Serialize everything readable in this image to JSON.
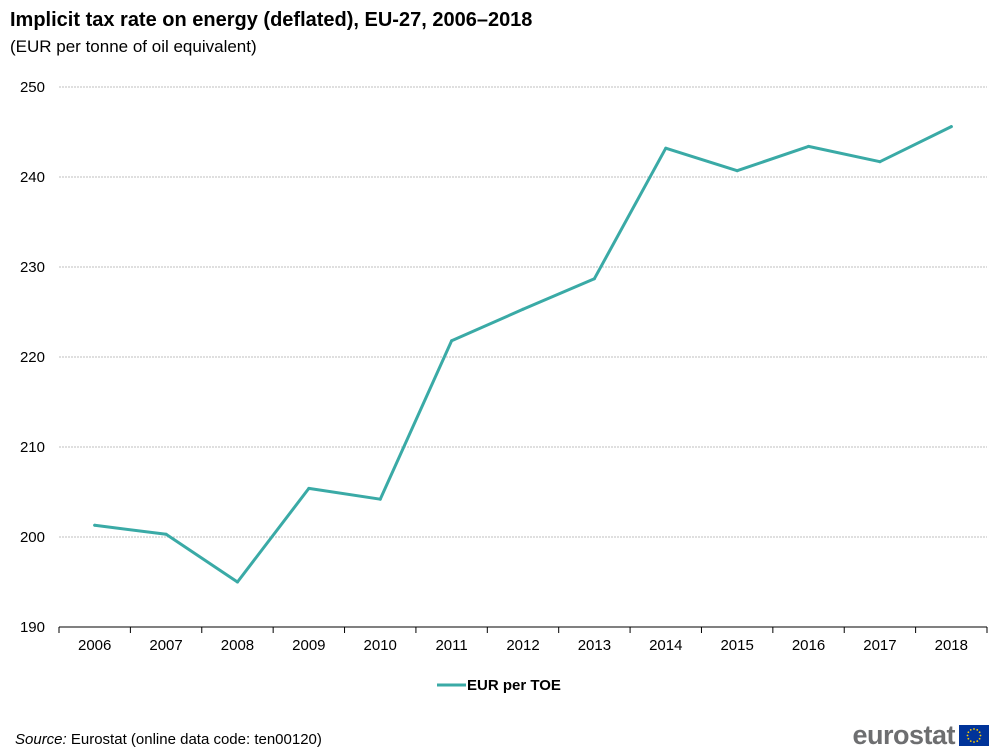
{
  "header": {
    "title": "Implicit tax rate on energy (deflated), EU-27, 2006–2018",
    "subtitle": "(EUR per tonne of oil equivalent)"
  },
  "footer": {
    "source_label": "Source:",
    "source_text": " Eurostat (online data code: ten00120)",
    "logo_text": "eurostat"
  },
  "colors": {
    "series": "#3aaaa6",
    "grid": "#bfbfbf",
    "axis": "#000000",
    "eu_flag_blue": "#003399",
    "eu_flag_star": "#ffcc00"
  },
  "chart_data": {
    "type": "line",
    "title": "Implicit tax rate on energy (deflated), EU-27, 2006–2018",
    "subtitle": "(EUR per tonne of oil equivalent)",
    "xlabel": "",
    "ylabel": "",
    "categories": [
      "2006",
      "2007",
      "2008",
      "2009",
      "2010",
      "2011",
      "2012",
      "2013",
      "2014",
      "2015",
      "2016",
      "2017",
      "2018"
    ],
    "series": [
      {
        "name": "EUR per TOE",
        "values": [
          201.3,
          200.3,
          195.0,
          205.4,
          204.2,
          221.8,
          225.3,
          228.7,
          243.2,
          240.7,
          243.4,
          241.7,
          245.6
        ]
      }
    ],
    "ylim": [
      190,
      250
    ],
    "yticks": [
      "190",
      "200",
      "210",
      "220",
      "230",
      "240",
      "250"
    ],
    "grid": true,
    "legend_position": "bottom-center"
  }
}
